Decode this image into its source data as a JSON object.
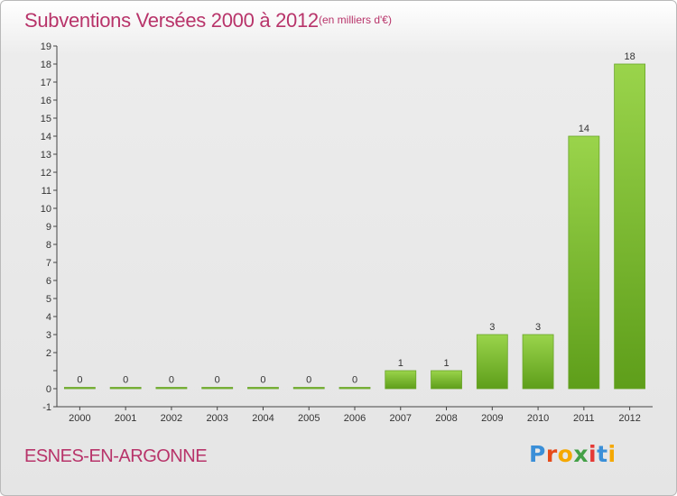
{
  "header": {
    "title": "Subventions Versées 2000 à 2012",
    "unit": "(en milliers d'€)"
  },
  "footer": {
    "commune": "ESNES-EN-ARGONNE",
    "logo_text": "Proxiti",
    "logo_colors": [
      "#3a8fd8",
      "#e64a19",
      "#f5a800",
      "#43a047",
      "#e53935",
      "#3a8fd8",
      "#f5a800"
    ]
  },
  "chart_data": {
    "type": "bar",
    "categories": [
      "2000",
      "2001",
      "2002",
      "2003",
      "2004",
      "2005",
      "2006",
      "2007",
      "2008",
      "2009",
      "2010",
      "2011",
      "2012"
    ],
    "values": [
      0,
      0,
      0,
      0,
      0,
      0,
      0,
      1,
      1,
      3,
      3,
      14,
      18
    ],
    "ylim": [
      -1,
      19
    ],
    "yticks": [
      "-1",
      "0",
      "",
      "2",
      "3",
      "4",
      "5",
      "6",
      "7",
      "8",
      "9",
      "10",
      "11",
      "12",
      "13",
      "14",
      "15",
      "16",
      "17",
      "18",
      "19"
    ],
    "grid": false,
    "bar_color_light": "#9ad44b",
    "bar_color_dark": "#5e9e1a"
  }
}
